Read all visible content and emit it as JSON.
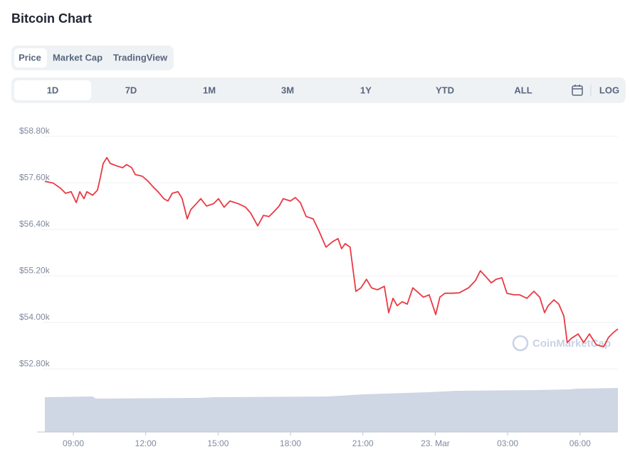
{
  "title": "Bitcoin Chart",
  "tabs": [
    "Price",
    "Market Cap",
    "TradingView"
  ],
  "ranges": [
    "1D",
    "7D",
    "1M",
    "3M",
    "1Y",
    "YTD",
    "ALL"
  ],
  "log": "LOG",
  "chart_data": {
    "type": "line",
    "watermark": "CoinMarketCap",
    "color": "#ea3943",
    "grid": true,
    "x": [
      7.82,
      8.17,
      8.47,
      8.68,
      8.91,
      9.12,
      9.27,
      9.44,
      9.56,
      9.8,
      10.0,
      10.12,
      10.24,
      10.39,
      10.53,
      10.83,
      11.04,
      11.21,
      11.42,
      11.57,
      11.86,
      12.1,
      12.3,
      12.51,
      12.75,
      12.92,
      13.1,
      13.34,
      13.51,
      13.72,
      13.87,
      14.07,
      14.28,
      14.52,
      14.81,
      15.02,
      15.25,
      15.49,
      15.84,
      16.14,
      16.35,
      16.64,
      16.88,
      17.11,
      17.32,
      17.53,
      17.7,
      18.0,
      18.2,
      18.41,
      18.65,
      18.94,
      19.18,
      19.47,
      19.77,
      19.97,
      20.12,
      20.27,
      20.47,
      20.71,
      20.92,
      21.15,
      21.36,
      21.6,
      21.89,
      22.07,
      22.25,
      22.42,
      22.63,
      22.84,
      23.07,
      23.31,
      23.51,
      23.75,
      24.02,
      24.19,
      24.4,
      24.7,
      24.99,
      25.38,
      25.67,
      25.87,
      26.11,
      26.32,
      26.52,
      26.76,
      26.97,
      27.26,
      27.5,
      27.8,
      28.09,
      28.33,
      28.53,
      28.68,
      28.92,
      29.12,
      29.33,
      29.47,
      29.65,
      29.92,
      30.15,
      30.39,
      30.68,
      30.98,
      31.18,
      31.39,
      31.57
    ],
    "values": [
      57640,
      57590,
      57460,
      57330,
      57370,
      57090,
      57370,
      57190,
      57370,
      57280,
      57410,
      57740,
      58100,
      58250,
      58100,
      58030,
      57990,
      58070,
      57990,
      57810,
      57770,
      57640,
      57500,
      57370,
      57190,
      57130,
      57330,
      57370,
      57190,
      56670,
      56910,
      57040,
      57190,
      57000,
      57060,
      57190,
      56970,
      57130,
      57060,
      56970,
      56820,
      56490,
      56760,
      56730,
      56860,
      57000,
      57190,
      57130,
      57220,
      57090,
      56730,
      56670,
      56360,
      55940,
      56090,
      56160,
      55900,
      56030,
      55940,
      54800,
      54890,
      55110,
      54890,
      54840,
      54930,
      54250,
      54620,
      54430,
      54530,
      54470,
      54890,
      54760,
      54650,
      54710,
      54200,
      54650,
      54750,
      54750,
      54760,
      54890,
      55080,
      55330,
      55170,
      55020,
      55110,
      55150,
      54750,
      54710,
      54710,
      54620,
      54800,
      54650,
      54250,
      54430,
      54580,
      54470,
      54160,
      53480,
      53590,
      53700,
      53480,
      53700,
      53420,
      53370,
      53610,
      53740,
      53830
    ],
    "xlim": [
      7.82,
      31.57
    ],
    "ylim": [
      51170,
      59200
    ],
    "xticks": [
      {
        "value": 9,
        "label": "09:00"
      },
      {
        "value": 12,
        "label": "12:00"
      },
      {
        "value": 15,
        "label": "15:00"
      },
      {
        "value": 18,
        "label": "18:00"
      },
      {
        "value": 21,
        "label": "21:00"
      },
      {
        "value": 24,
        "label": "23. Mar"
      },
      {
        "value": 27,
        "label": "03:00"
      },
      {
        "value": 30,
        "label": "06:00"
      }
    ],
    "yticks": [
      {
        "value": 52800,
        "label": "$52.80k"
      },
      {
        "value": 54000,
        "label": "$54.00k"
      },
      {
        "value": 55200,
        "label": "$55.20k"
      },
      {
        "value": 56400,
        "label": "$56.40k"
      },
      {
        "value": 57600,
        "label": "$57.60k"
      },
      {
        "value": 58800,
        "label": "$58.80k"
      }
    ]
  }
}
